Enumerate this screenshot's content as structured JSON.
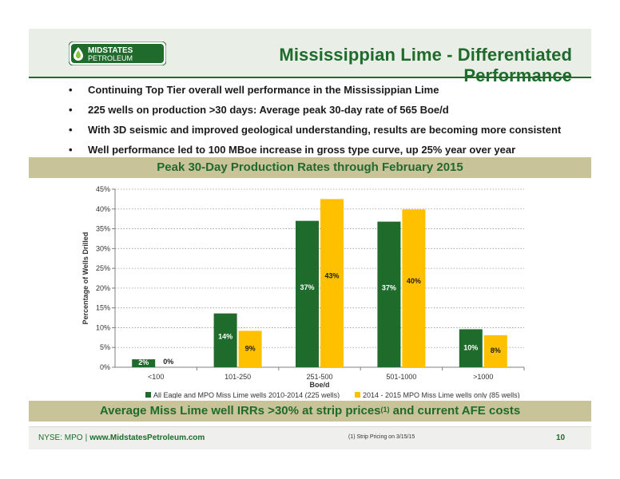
{
  "header": {
    "title": "Mississippian Lime - Differentiated Performance",
    "logo_text_top": "MIDSTATES",
    "logo_text_bottom": "PETROLEUM"
  },
  "bullets": [
    "Continuing Top Tier overall well performance in the Mississippian Lime",
    "225 wells on production >30 days: Average peak 30-day rate of 565 Boe/d",
    "With 3D seismic and improved geological understanding, results are becoming more consistent",
    "Well performance led to 100 MBoe increase in gross type curve, up 25% year over year"
  ],
  "chart_band_title": "Peak 30-Day Production Rates through February 2015",
  "bottom_band": {
    "text_before": "Average Miss Lime well IRRs >30% at strip prices",
    "sup": "(1)",
    "text_after": " and current AFE costs"
  },
  "footer": {
    "ticker": "NYSE: MPO",
    "separator": "|",
    "website": "www.MidstatesPetroleum.com",
    "footnote": "(1)    Strip Pricing on 3/15/15",
    "page_number": "10"
  },
  "colors": {
    "series1": "#1e6b2b",
    "series2": "#ffc000",
    "brand_green": "#1e6b2b",
    "band": "#c9c39a"
  },
  "chart_data": {
    "type": "bar",
    "title": "Peak 30-Day Production Rates through February 2015",
    "xlabel": "Boe/d",
    "ylabel": "Percentage of Wells Drilled",
    "categories": [
      "<100",
      "101-250",
      "251-500",
      "501-1000",
      ">1000"
    ],
    "ylim": [
      0,
      45
    ],
    "yticks": [
      "0%",
      "5%",
      "10%",
      "15%",
      "20%",
      "25%",
      "30%",
      "35%",
      "40%",
      "45%"
    ],
    "grid": true,
    "legend_position": "bottom",
    "series": [
      {
        "name": "All Eagle and MPO Miss Lime wells 2010-2014 (225 wells)",
        "values": [
          2,
          13.6,
          37,
          36.8,
          9.6
        ],
        "labels": [
          "2%",
          "14%",
          "37%",
          "37%",
          "10%"
        ]
      },
      {
        "name": "2014 - 2015 MPO Miss Lime wells only (85 wells)",
        "values": [
          0,
          9.2,
          42.5,
          39.9,
          8.1
        ],
        "labels": [
          "0%",
          "9%",
          "43%",
          "40%",
          "8%"
        ]
      }
    ]
  }
}
